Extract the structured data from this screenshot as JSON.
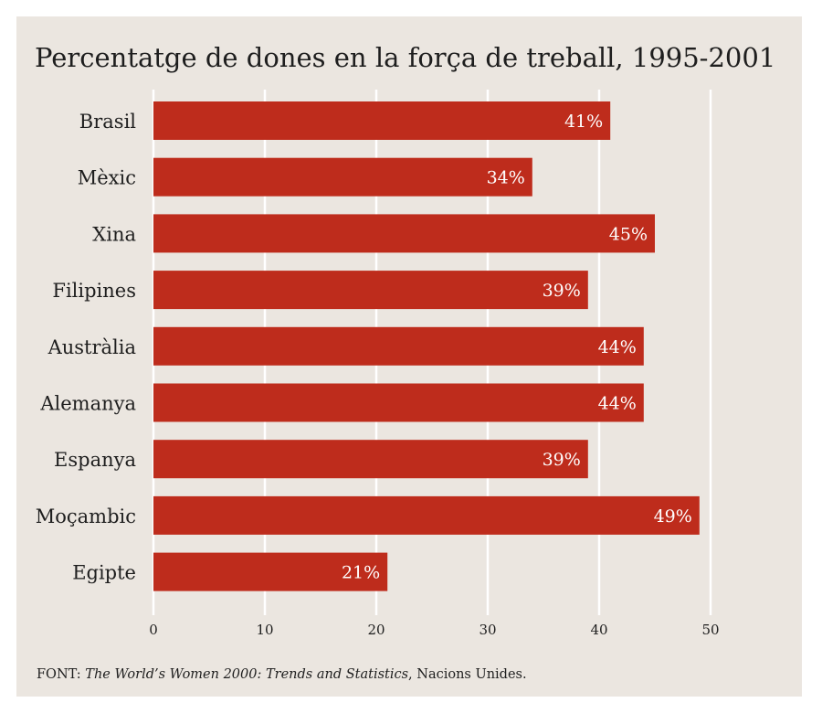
{
  "chart_data": {
    "type": "bar",
    "orientation": "horizontal",
    "title": "Percentatge de dones en la força de treball, 1995-2001",
    "xlabel": "",
    "ylabel": "",
    "categories": [
      "Brasil",
      "Mèxic",
      "Xina",
      "Filipines",
      "Austràlia",
      "Alemanya",
      "Espanya",
      "Moçambic",
      "Egipte"
    ],
    "values": [
      41,
      34,
      45,
      39,
      44,
      44,
      39,
      49,
      21
    ],
    "value_labels": [
      "41%",
      "34%",
      "45%",
      "39%",
      "44%",
      "44%",
      "39%",
      "49%",
      "21%"
    ],
    "xlim": [
      0,
      50
    ],
    "xticks": [
      0,
      10,
      20,
      30,
      40,
      50
    ],
    "xtick_labels": [
      "0",
      "10",
      "20",
      "30",
      "40",
      "50"
    ],
    "grid": "vertical",
    "colors": {
      "bar": "#be2c1c",
      "background": "#ebe6e0",
      "grid": "#ffffff"
    }
  },
  "source": {
    "prefix": "FONT: ",
    "work": "The World’s Women 2000: Trends and Statistics",
    "suffix": ", Nacions Unides."
  }
}
